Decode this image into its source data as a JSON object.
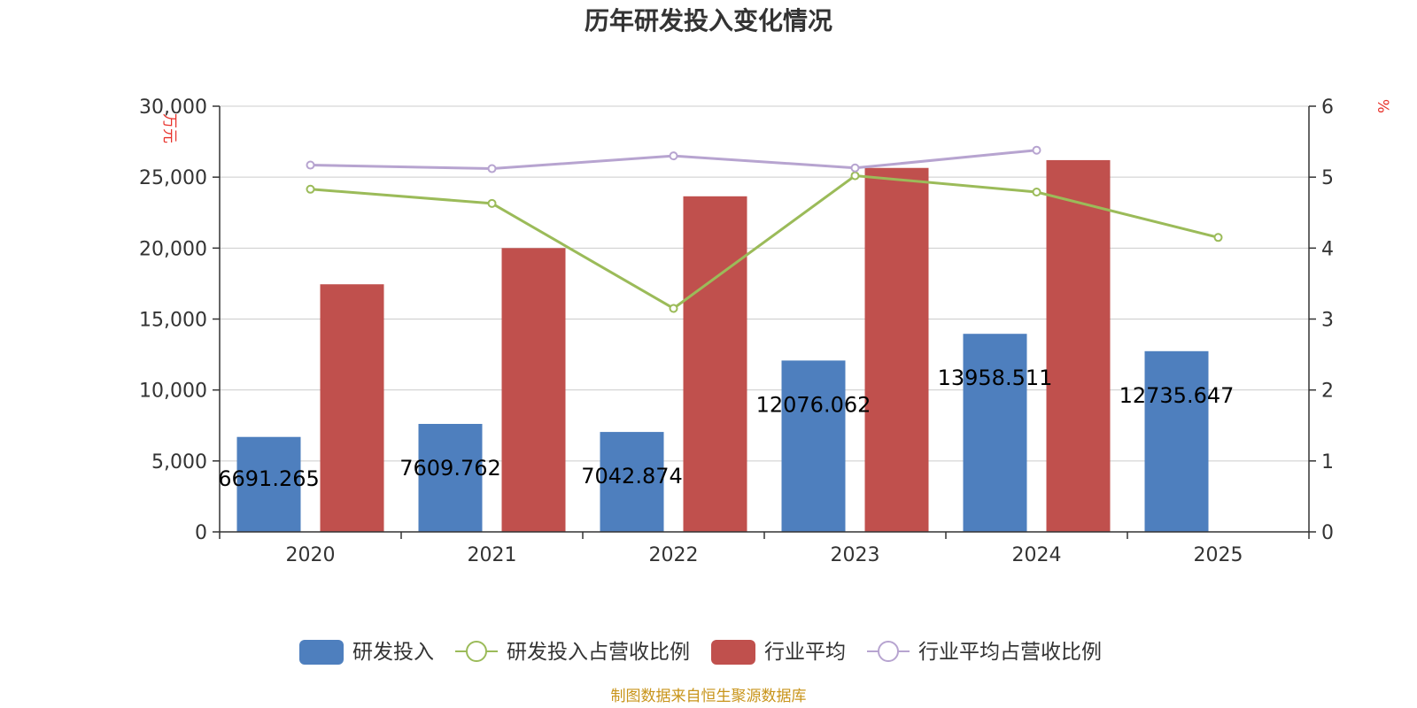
{
  "chart_data": {
    "type": "bar",
    "title": "历年研发投入变化情况",
    "categories": [
      "2020",
      "2021",
      "2022",
      "2023",
      "2024",
      "2025"
    ],
    "y_left": {
      "unit": "万元",
      "min": 0,
      "max": 30000,
      "ticks": [
        0,
        5000,
        10000,
        15000,
        20000,
        25000,
        30000
      ],
      "tick_labels": [
        "0",
        "5,000",
        "10,000",
        "15,000",
        "20,000",
        "25,000",
        "30,000"
      ]
    },
    "y_right": {
      "unit": "%",
      "min": 0,
      "max": 6,
      "ticks": [
        0,
        1,
        2,
        3,
        4,
        5,
        6
      ],
      "tick_labels": [
        "0",
        "1",
        "2",
        "3",
        "4",
        "5",
        "6"
      ]
    },
    "series": [
      {
        "name": "研发投入",
        "type": "bar",
        "axis": "left",
        "color": "#4e7fbe",
        "values": [
          6691.265,
          7609.762,
          7042.874,
          12076.062,
          13958.511,
          12735.647
        ],
        "labels": [
          "6691.265",
          "7609.762",
          "7042.874",
          "12076.062",
          "13958.511",
          "12735.647"
        ]
      },
      {
        "name": "研发投入占营收比例",
        "type": "line",
        "axis": "right",
        "color": "#9bbb59",
        "values": [
          4.83,
          4.63,
          3.15,
          5.02,
          4.79,
          4.15
        ]
      },
      {
        "name": "行业平均",
        "type": "bar",
        "axis": "left",
        "color": "#c0504d",
        "values": [
          17450,
          20000,
          23650,
          25650,
          26200,
          null
        ]
      },
      {
        "name": "行业平均占营收比例",
        "type": "line",
        "axis": "right",
        "color": "#b7a4d0",
        "values": [
          5.17,
          5.12,
          5.3,
          5.13,
          5.38,
          null
        ]
      }
    ],
    "legend_position": "bottom",
    "grid": true
  },
  "footer": {
    "source": "制图数据来自恒生聚源数据库"
  }
}
